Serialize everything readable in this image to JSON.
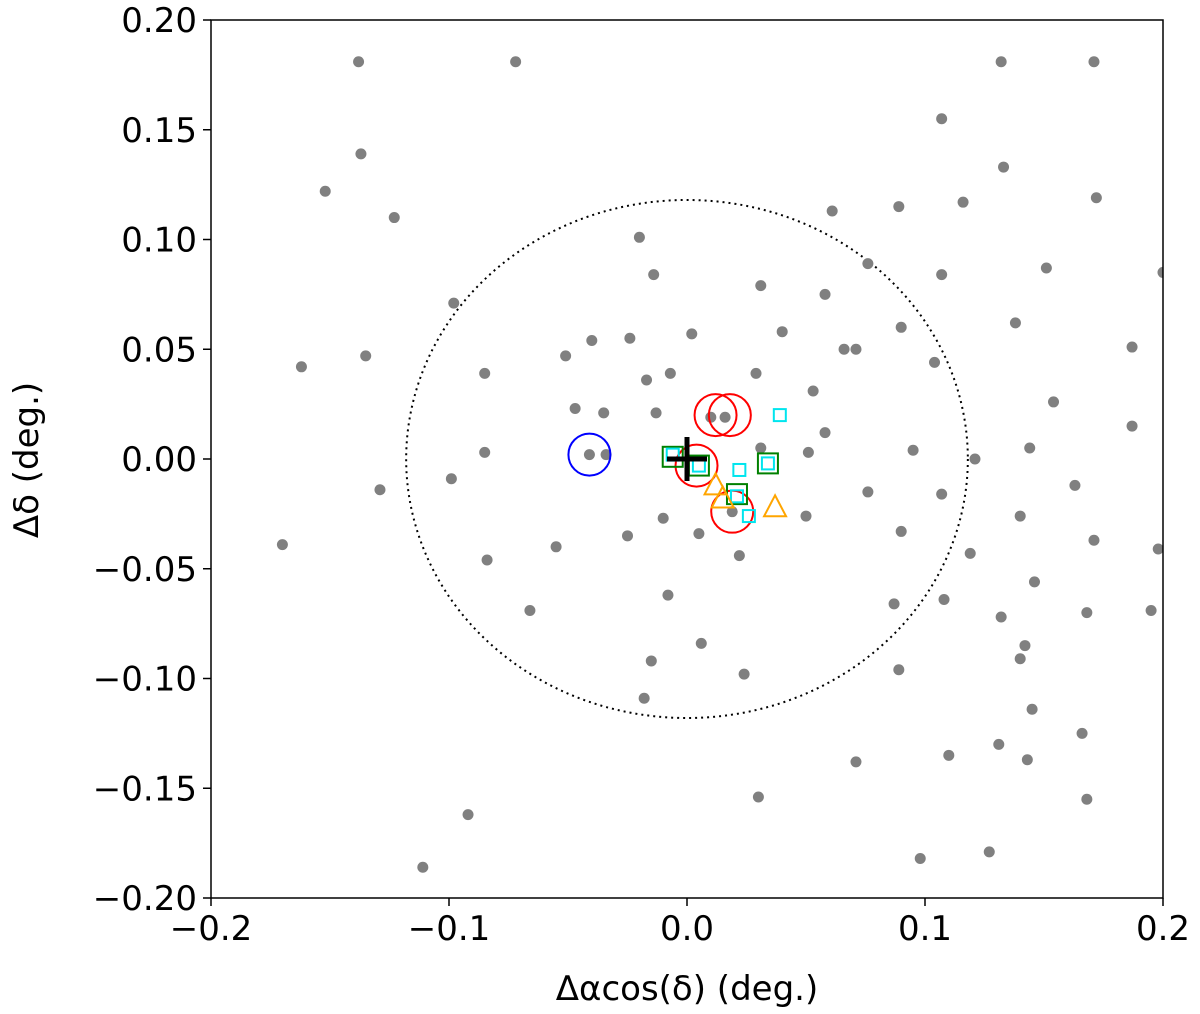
{
  "chart_data": {
    "type": "scatter",
    "title": "",
    "xlabel": "Δαcos(δ) (deg.)",
    "ylabel": "Δδ (deg.)",
    "xlim": [
      -0.2,
      0.2
    ],
    "ylim": [
      -0.2,
      0.2
    ],
    "xticks": [
      "−0.2",
      "−0.1",
      "0.0",
      "0.1",
      "0.2"
    ],
    "xtick_values": [
      -0.2,
      -0.1,
      0.0,
      0.1,
      0.2
    ],
    "yticks": [
      "0.20",
      "0.15",
      "0.10",
      "0.05",
      "0.00",
      "−0.05",
      "−0.10",
      "−0.15",
      "−0.20"
    ],
    "ytick_values": [
      0.2,
      0.15,
      0.1,
      0.05,
      0.0,
      -0.05,
      -0.1,
      -0.15,
      -0.2
    ],
    "grid": false,
    "legend": "none",
    "colors": {
      "background_points": "#808080",
      "circle_red": "#ff0000",
      "circle_blue": "#0000ff",
      "square_green": "#008000",
      "square_cyan": "#00e5ee",
      "triangle_orange": "#ffa500",
      "center_marker": "#000000",
      "radius_circle": "#000000"
    },
    "center": [
      0.0,
      0.0
    ],
    "radius_circle": 0.118,
    "series": [
      {
        "marker": "gray-dot",
        "points": [
          [
            -0.138,
            0.181
          ],
          [
            -0.072,
            0.181
          ],
          [
            0.132,
            0.181
          ],
          [
            0.171,
            0.181
          ],
          [
            -0.137,
            0.139
          ],
          [
            -0.152,
            0.122
          ],
          [
            -0.123,
            0.11
          ],
          [
            0.107,
            0.155
          ],
          [
            0.133,
            0.133
          ],
          [
            0.172,
            0.119
          ],
          [
            0.116,
            0.117
          ],
          [
            0.089,
            0.115
          ],
          [
            0.061,
            0.113
          ],
          [
            -0.02,
            0.101
          ],
          [
            0.076,
            0.089
          ],
          [
            0.107,
            0.084
          ],
          [
            -0.014,
            0.084
          ],
          [
            0.2,
            0.085
          ],
          [
            0.151,
            0.087
          ],
          [
            0.031,
            0.079
          ],
          [
            0.058,
            0.075
          ],
          [
            -0.098,
            0.071
          ],
          [
            0.138,
            0.062
          ],
          [
            0.09,
            0.06
          ],
          [
            0.04,
            0.058
          ],
          [
            0.002,
            0.057
          ],
          [
            -0.024,
            0.055
          ],
          [
            -0.04,
            0.054
          ],
          [
            0.066,
            0.05
          ],
          [
            0.071,
            0.05
          ],
          [
            -0.135,
            0.047
          ],
          [
            -0.051,
            0.047
          ],
          [
            0.187,
            0.051
          ],
          [
            -0.162,
            0.042
          ],
          [
            0.104,
            0.044
          ],
          [
            -0.085,
            0.039
          ],
          [
            -0.017,
            0.036
          ],
          [
            -0.007,
            0.039
          ],
          [
            0.029,
            0.039
          ],
          [
            0.053,
            0.031
          ],
          [
            0.154,
            0.026
          ],
          [
            -0.047,
            0.023
          ],
          [
            -0.035,
            0.021
          ],
          [
            -0.013,
            0.021
          ],
          [
            0.01,
            0.019
          ],
          [
            0.016,
            0.019
          ],
          [
            0.187,
            0.015
          ],
          [
            0.058,
            0.012
          ],
          [
            0.144,
            0.005
          ],
          [
            -0.041,
            0.002
          ],
          [
            -0.034,
            0.002
          ],
          [
            -0.085,
            0.003
          ],
          [
            0.031,
            0.005
          ],
          [
            0.051,
            0.003
          ],
          [
            0.095,
            0.004
          ],
          [
            0.121,
            0.0
          ],
          [
            -0.099,
            -0.009
          ],
          [
            -0.129,
            -0.014
          ],
          [
            0.076,
            -0.015
          ],
          [
            0.107,
            -0.016
          ],
          [
            0.163,
            -0.012
          ],
          [
            0.05,
            -0.026
          ],
          [
            0.14,
            -0.026
          ],
          [
            -0.01,
            -0.027
          ],
          [
            0.019,
            -0.024
          ],
          [
            0.005,
            -0.034
          ],
          [
            -0.025,
            -0.035
          ],
          [
            0.09,
            -0.033
          ],
          [
            0.171,
            -0.037
          ],
          [
            0.198,
            -0.041
          ],
          [
            -0.17,
            -0.039
          ],
          [
            -0.055,
            -0.04
          ],
          [
            0.022,
            -0.044
          ],
          [
            0.119,
            -0.043
          ],
          [
            -0.084,
            -0.046
          ],
          [
            0.146,
            -0.056
          ],
          [
            -0.066,
            -0.069
          ],
          [
            -0.008,
            -0.062
          ],
          [
            0.108,
            -0.064
          ],
          [
            0.087,
            -0.066
          ],
          [
            0.168,
            -0.07
          ],
          [
            0.195,
            -0.069
          ],
          [
            0.132,
            -0.072
          ],
          [
            0.006,
            -0.084
          ],
          [
            0.142,
            -0.085
          ],
          [
            -0.015,
            -0.092
          ],
          [
            0.14,
            -0.091
          ],
          [
            0.089,
            -0.096
          ],
          [
            0.024,
            -0.098
          ],
          [
            -0.018,
            -0.109
          ],
          [
            0.145,
            -0.114
          ],
          [
            0.166,
            -0.125
          ],
          [
            0.131,
            -0.13
          ],
          [
            0.11,
            -0.135
          ],
          [
            0.143,
            -0.137
          ],
          [
            0.071,
            -0.138
          ],
          [
            0.03,
            -0.154
          ],
          [
            0.168,
            -0.155
          ],
          [
            -0.092,
            -0.162
          ],
          [
            0.098,
            -0.182
          ],
          [
            0.127,
            -0.179
          ],
          [
            -0.111,
            -0.186
          ]
        ]
      },
      {
        "marker": "red-circle",
        "points": [
          [
            0.012,
            0.02
          ],
          [
            0.018,
            0.02
          ],
          [
            0.004,
            -0.003
          ],
          [
            0.019,
            -0.024
          ]
        ]
      },
      {
        "marker": "blue-circle",
        "points": [
          [
            -0.041,
            0.002
          ]
        ]
      },
      {
        "marker": "green-square",
        "points": [
          [
            -0.006,
            0.001
          ],
          [
            0.005,
            -0.003
          ],
          [
            0.021,
            -0.016
          ],
          [
            0.034,
            -0.002
          ]
        ]
      },
      {
        "marker": "cyan-square",
        "points": [
          [
            -0.006,
            0.002
          ],
          [
            0.005,
            -0.003
          ],
          [
            0.022,
            -0.005
          ],
          [
            0.021,
            -0.017
          ],
          [
            0.034,
            -0.002
          ],
          [
            0.026,
            -0.026
          ],
          [
            0.039,
            0.02
          ]
        ]
      },
      {
        "marker": "orange-triangle",
        "points": [
          [
            0.012,
            -0.012
          ],
          [
            0.015,
            -0.018
          ],
          [
            0.037,
            -0.022
          ]
        ]
      }
    ]
  }
}
